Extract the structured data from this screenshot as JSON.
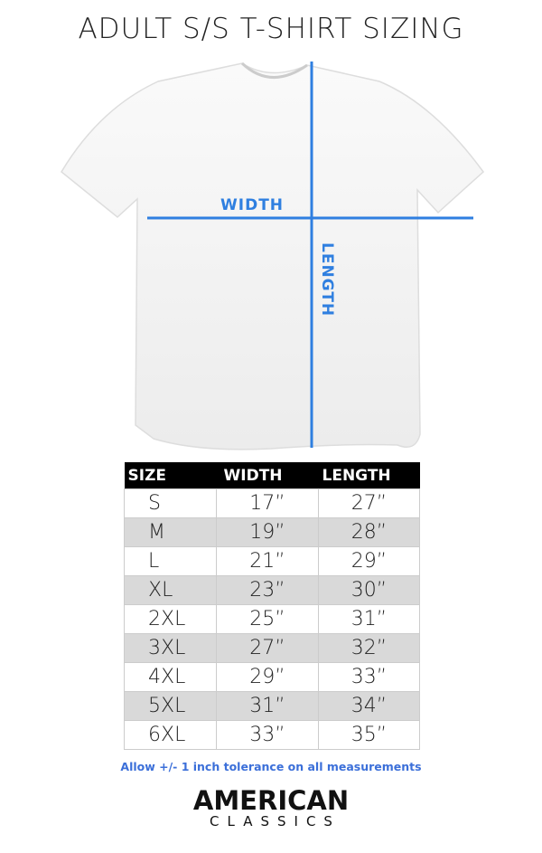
{
  "title": "ADULT S/S T-SHIRT SIZING",
  "diagram": {
    "width_label": "WIDTH",
    "length_label": "LENGTH",
    "line_color": "#2f7fe0"
  },
  "table": {
    "headers": [
      "SIZE",
      "WIDTH",
      "LENGTH"
    ],
    "rows": [
      [
        "S",
        "17”",
        "27”"
      ],
      [
        "M",
        "19”",
        "28”"
      ],
      [
        "L",
        "21”",
        "29”"
      ],
      [
        "XL",
        "23”",
        "30”"
      ],
      [
        "2XL",
        "25”",
        "31”"
      ],
      [
        "3XL",
        "27”",
        "32”"
      ],
      [
        "4XL",
        "29”",
        "33”"
      ],
      [
        "5XL",
        "31”",
        "34”"
      ],
      [
        "6XL",
        "33”",
        "35”"
      ]
    ]
  },
  "tolerance_note": "Allow +/- 1 inch tolerance on all measurements",
  "logo": {
    "line1": "AMERICAN",
    "line2": "CLASSICS"
  }
}
